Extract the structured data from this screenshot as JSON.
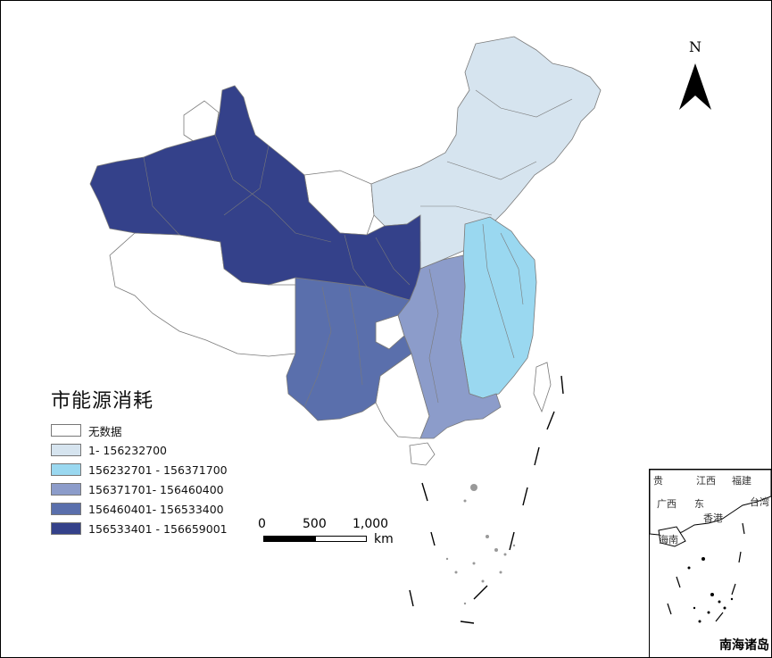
{
  "legend": {
    "title": "市能源消耗",
    "items": [
      {
        "label": "无数据",
        "color": "#ffffff"
      },
      {
        "label": "1- 156232700",
        "color": "#d6e4ef"
      },
      {
        "label": "156232701 - 156371700",
        "color": "#9ad8f0"
      },
      {
        "label": "156371701- 156460400",
        "color": "#8c9cca"
      },
      {
        "label": "156460401- 156533400",
        "color": "#5a6fac"
      },
      {
        "label": "156533401 - 156659001",
        "color": "#34418a"
      }
    ]
  },
  "north_arrow": {
    "label": "N"
  },
  "scale_bar": {
    "ticks": [
      "0",
      "500",
      "1,000"
    ],
    "unit": "km"
  },
  "inset": {
    "title": "南海诸岛",
    "labels": [
      "贵",
      "江西",
      "福建",
      "广西",
      "东",
      "台湾",
      "香港",
      "海南"
    ]
  },
  "colors": {
    "border": "#7a7a7a",
    "frame": "#000000"
  }
}
